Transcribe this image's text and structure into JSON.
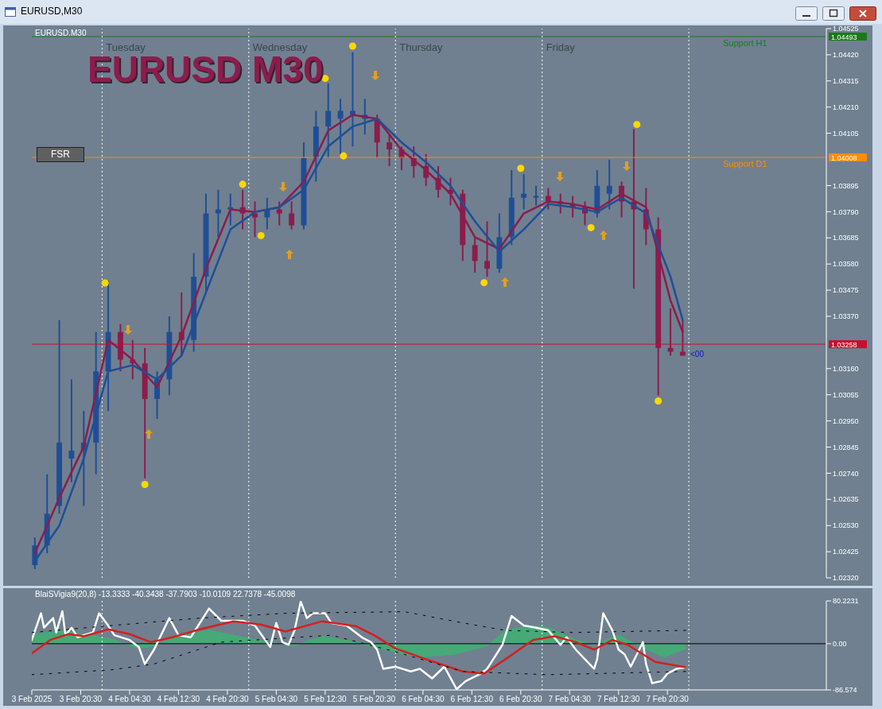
{
  "chart_data": [
    {
      "type": "candlestick",
      "title": "EURUSD M30",
      "x": [
        "2025-02-03T13:00",
        "2025-02-03T15:00",
        "2025-02-03T17:00",
        "2025-02-03T19:00",
        "2025-02-03T21:00",
        "2025-02-03T23:00",
        "2025-02-04T01:00",
        "2025-02-04T03:00",
        "2025-02-04T05:00",
        "2025-02-04T07:00",
        "2025-02-04T09:00",
        "2025-02-04T11:00",
        "2025-02-04T13:00",
        "2025-02-04T15:00",
        "2025-02-04T17:00",
        "2025-02-04T19:00",
        "2025-02-04T21:00",
        "2025-02-04T23:00",
        "2025-02-05T01:00",
        "2025-02-05T03:00",
        "2025-02-05T05:00",
        "2025-02-05T07:00",
        "2025-02-05T09:00",
        "2025-02-05T11:00",
        "2025-02-05T13:00",
        "2025-02-05T15:00",
        "2025-02-05T17:00",
        "2025-02-05T19:00",
        "2025-02-05T21:00",
        "2025-02-05T23:00",
        "2025-02-06T01:00",
        "2025-02-06T03:00",
        "2025-02-06T05:00",
        "2025-02-06T07:00",
        "2025-02-06T09:00",
        "2025-02-06T11:00",
        "2025-02-06T13:00",
        "2025-02-06T15:00",
        "2025-02-06T17:00",
        "2025-02-06T19:00",
        "2025-02-06T21:00",
        "2025-02-06T23:00",
        "2025-02-07T01:00",
        "2025-02-07T03:00",
        "2025-02-07T05:00",
        "2025-02-07T07:00",
        "2025-02-07T09:00",
        "2025-02-07T11:00",
        "2025-02-07T13:00",
        "2025-02-07T15:00",
        "2025-02-07T17:00",
        "2025-02-07T19:00",
        "2025-02-07T21:00",
        "2025-02-07T23:00"
      ],
      "ohlc": [
        [
          1.02371,
          1.02482,
          1.02355,
          1.0245
        ],
        [
          1.0245,
          1.02736,
          1.02419,
          1.02577
        ],
        [
          1.02609,
          1.03355,
          1.02577,
          1.02863
        ],
        [
          1.02799,
          1.03117,
          1.02704,
          1.02831
        ],
        [
          1.02831,
          1.0299,
          1.02609,
          1.02863
        ],
        [
          1.02863,
          1.03307,
          1.02736,
          1.03149
        ],
        [
          1.03149,
          1.03513,
          1.0299,
          1.03307
        ],
        [
          1.03307,
          1.03339,
          1.03149,
          1.03196
        ],
        [
          1.03196,
          1.03275,
          1.03117,
          1.03181
        ],
        [
          1.03181,
          1.03243,
          1.0272,
          1.03038
        ],
        [
          1.03038,
          1.03149,
          1.02958,
          1.03117
        ],
        [
          1.03117,
          1.0337,
          1.03053,
          1.03307
        ],
        [
          1.03307,
          1.03466,
          1.03212,
          1.03275
        ],
        [
          1.03275,
          1.03624,
          1.03228,
          1.03529
        ],
        [
          1.03529,
          1.03862,
          1.03466,
          1.03783
        ],
        [
          1.03783,
          1.03878,
          1.03688,
          1.03799
        ],
        [
          1.03799,
          1.03862,
          1.03735,
          1.03808
        ],
        [
          1.03808,
          1.03878,
          1.03719,
          1.03783
        ],
        [
          1.03783,
          1.03831,
          1.03688,
          1.03767
        ],
        [
          1.03767,
          1.03846,
          1.03719,
          1.03799
        ],
        [
          1.03799,
          1.03831,
          1.03735,
          1.03783
        ],
        [
          1.03783,
          1.03831,
          1.03719,
          1.03735
        ],
        [
          1.03735,
          1.04068,
          1.03719,
          1.04005
        ],
        [
          1.04005,
          1.04195,
          1.03911,
          1.04132
        ],
        [
          1.04132,
          1.04306,
          1.04005,
          1.04195
        ],
        [
          1.04163,
          1.04243,
          1.04021,
          1.04195
        ],
        [
          1.04179,
          1.0443,
          1.04052,
          1.04195
        ],
        [
          1.04163,
          1.04243,
          1.041,
          1.04179
        ],
        [
          1.04163,
          1.04179,
          1.04005,
          1.04068
        ],
        [
          1.04068,
          1.041,
          1.03973,
          1.0404
        ],
        [
          1.0404,
          1.04052,
          1.03957,
          1.04005
        ],
        [
          1.04005,
          1.04052,
          1.03926,
          1.03973
        ],
        [
          1.03973,
          1.04021,
          1.03894,
          1.03926
        ],
        [
          1.03926,
          1.03973,
          1.03846,
          1.03878
        ],
        [
          1.03878,
          1.03926,
          1.03815,
          1.03862
        ],
        [
          1.03862,
          1.03878,
          1.03592,
          1.03656
        ],
        [
          1.03656,
          1.03688,
          1.03545,
          1.03592
        ],
        [
          1.03592,
          1.03751,
          1.03529,
          1.03561
        ],
        [
          1.03561,
          1.03783,
          1.03545,
          1.03688
        ],
        [
          1.03688,
          1.03957,
          1.03656,
          1.03846
        ],
        [
          1.03846,
          1.03941,
          1.03799,
          1.03862
        ],
        [
          1.03846,
          1.03894,
          1.03815,
          1.03853
        ],
        [
          1.03853,
          1.03885,
          1.03799,
          1.03831
        ],
        [
          1.03831,
          1.03862,
          1.03783,
          1.03821
        ],
        [
          1.03821,
          1.03853,
          1.03767,
          1.03808
        ],
        [
          1.03808,
          1.03831,
          1.03735,
          1.03783
        ],
        [
          1.03783,
          1.03957,
          1.03767,
          1.03894
        ],
        [
          1.03862,
          1.03999,
          1.03799,
          1.03894
        ],
        [
          1.03894,
          1.03911,
          1.03767,
          1.03831
        ],
        [
          1.03831,
          1.04122,
          1.03481,
          1.03799
        ],
        [
          1.03799,
          1.03885,
          1.03656,
          1.03719
        ],
        [
          1.03719,
          1.03767,
          1.03053,
          1.03243
        ],
        [
          1.03243,
          1.03402,
          1.03212,
          1.03228
        ],
        [
          1.03228,
          1.03355,
          1.03212,
          1.03212
        ]
      ],
      "colors": [
        "#1f4e96",
        "#1f4e96",
        "#1f4e96",
        "#1f4e96",
        "#1f4e96",
        "#1f4e96",
        "#1f4e96",
        "#8c1c4c",
        "#8c1c4c",
        "#8c1c4c",
        "#1f4e96",
        "#1f4e96",
        "#8c1c4c",
        "#1f4e96",
        "#1f4e96",
        "#1f4e96",
        "#1f4e96",
        "#8c1c4c",
        "#8c1c4c",
        "#1f4e96",
        "#8c1c4c",
        "#8c1c4c",
        "#1f4e96",
        "#1f4e96",
        "#1f4e96",
        "#1f4e96",
        "#1f4e96",
        "#1f4e96",
        "#8c1c4c",
        "#8c1c4c",
        "#8c1c4c",
        "#8c1c4c",
        "#8c1c4c",
        "#8c1c4c",
        "#8c1c4c",
        "#8c1c4c",
        "#8c1c4c",
        "#8c1c4c",
        "#1f4e96",
        "#1f4e96",
        "#1f4e96",
        "#1f4e96",
        "#8c1c4c",
        "#8c1c4c",
        "#8c1c4c",
        "#8c1c4c",
        "#1f4e96",
        "#1f4e96",
        "#8c1c4c",
        "#8c1c4c",
        "#8c1c4c",
        "#8c1c4c",
        "#8c1c4c",
        "#8c1c4c"
      ],
      "series": [
        {
          "type": "line",
          "color": "#8c1c4c",
          "x": [
            "2025-02-03T13:00",
            "2025-02-03T17:00",
            "2025-02-03T21:00",
            "2025-02-04T01:00",
            "2025-02-04T05:00",
            "2025-02-04T09:00",
            "2025-02-04T13:00",
            "2025-02-04T17:00",
            "2025-02-04T21:00",
            "2025-02-05T01:00",
            "2025-02-05T05:00",
            "2025-02-05T09:00",
            "2025-02-05T13:00",
            "2025-02-05T17:00",
            "2025-02-05T21:00",
            "2025-02-06T01:00",
            "2025-02-06T05:00",
            "2025-02-06T09:00",
            "2025-02-06T13:00",
            "2025-02-06T17:00",
            "2025-02-06T21:00",
            "2025-02-07T01:00",
            "2025-02-07T05:00",
            "2025-02-07T09:00",
            "2025-02-07T13:00",
            "2025-02-07T17:00",
            "2025-02-07T21:00",
            "2025-02-07T23:00"
          ],
          "values": [
            1.02419,
            1.02641,
            1.02847,
            1.03275,
            1.03196,
            1.03085,
            1.03291,
            1.03561,
            1.03799,
            1.03789,
            1.03808,
            1.0391,
            1.04116,
            1.04179,
            1.04163,
            1.04037,
            1.03957,
            1.03862,
            1.03688,
            1.0364,
            1.03783,
            1.03831,
            1.03821,
            1.03799,
            1.03862,
            1.03808,
            1.03434,
            1.03307
          ]
        },
        {
          "type": "line",
          "color": "#1f4e96",
          "x": [
            "2025-02-03T13:00",
            "2025-02-03T17:00",
            "2025-02-03T21:00",
            "2025-02-04T01:00",
            "2025-02-04T05:00",
            "2025-02-04T09:00",
            "2025-02-04T13:00",
            "2025-02-04T17:00",
            "2025-02-04T21:00",
            "2025-02-05T01:00",
            "2025-02-05T05:00",
            "2025-02-05T09:00",
            "2025-02-05T13:00",
            "2025-02-05T17:00",
            "2025-02-05T21:00",
            "2025-02-06T01:00",
            "2025-02-06T05:00",
            "2025-02-06T09:00",
            "2025-02-06T13:00",
            "2025-02-06T17:00",
            "2025-02-06T21:00",
            "2025-02-07T01:00",
            "2025-02-07T05:00",
            "2025-02-07T09:00",
            "2025-02-07T13:00",
            "2025-02-07T17:00",
            "2025-02-07T21:00",
            "2025-02-07T23:00"
          ],
          "values": [
            1.02387,
            1.0253,
            1.02799,
            1.03149,
            1.03174,
            1.03117,
            1.03212,
            1.03466,
            1.03719,
            1.03789,
            1.03808,
            1.03878,
            1.04052,
            1.04132,
            1.04163,
            1.04068,
            1.03989,
            1.03894,
            1.03751,
            1.0363,
            1.03719,
            1.03821,
            1.03808,
            1.03789,
            1.03846,
            1.03783,
            1.03529,
            1.03355
          ]
        },
        {
          "type": "scatter",
          "color": "#ffd700",
          "x": [
            "2025-02-04T00:30",
            "2025-02-04T07:00",
            "2025-02-04T23:00",
            "2025-02-05T02:00",
            "2025-02-05T12:30",
            "2025-02-05T15:30",
            "2025-02-05T17:00",
            "2025-02-06T14:30",
            "2025-02-06T20:30",
            "2025-02-07T08:00",
            "2025-02-07T15:30",
            "2025-02-07T19:00"
          ],
          "values": [
            1.03504,
            1.02695,
            1.039,
            1.03694,
            1.04325,
            1.04014,
            1.04455,
            1.03505,
            1.03964,
            1.03726,
            1.0414,
            1.0303
          ]
        }
      ],
      "xlim": [
        "2025-02-03T12:30",
        "2025-02-08T22:30"
      ],
      "ylim": [
        1.0232,
        1.04525
      ],
      "yticks": [
        {
          "value": 1.04525,
          "label": "1.04525"
        },
        {
          "value": 1.0442,
          "label": "1.04420"
        },
        {
          "value": 1.04315,
          "label": "1.04315"
        },
        {
          "value": 1.0421,
          "label": "1.04210"
        },
        {
          "value": 1.04105,
          "label": "1.04105"
        },
        {
          "value": 1.03895,
          "label": "1.03895"
        },
        {
          "value": 1.0379,
          "label": "1.03790"
        },
        {
          "value": 1.03685,
          "label": "1.03685"
        },
        {
          "value": 1.0358,
          "label": "1.03580"
        },
        {
          "value": 1.03475,
          "label": "1.03475"
        },
        {
          "value": 1.0337,
          "label": "1.03370"
        },
        {
          "value": 1.0316,
          "label": "1.03160"
        },
        {
          "value": 1.03055,
          "label": "1.03055"
        },
        {
          "value": 1.0295,
          "label": "1.02950"
        },
        {
          "value": 1.02845,
          "label": "1.02845"
        },
        {
          "value": 1.0274,
          "label": "1.02740"
        },
        {
          "value": 1.02635,
          "label": "1.02635"
        },
        {
          "value": 1.0253,
          "label": "1.02530"
        },
        {
          "value": 1.02425,
          "label": "1.02425"
        },
        {
          "value": 1.0232,
          "label": "1.02320"
        }
      ],
      "tick_labels": "y",
      "ref_lines": [
        {
          "axis": "y",
          "value": 1.04493,
          "label": "Support H1",
          "color": "#1a7a1a"
        },
        {
          "axis": "y",
          "value": 1.04008,
          "label": "Support D1",
          "color": "#ff8c00"
        },
        {
          "axis": "y",
          "value": 1.03258,
          "label": null,
          "color": "#c8102e"
        },
        {
          "axis": "x",
          "value": "2025-02-04T00:00",
          "label": "Tuesday",
          "color": "#ffffff",
          "line_style": "dotted"
        },
        {
          "axis": "x",
          "value": "2025-02-05T00:00",
          "label": "Wednesday",
          "color": "#ffffff",
          "line_style": "dotted"
        },
        {
          "axis": "x",
          "value": "2025-02-06T00:00",
          "label": "Thursday",
          "color": "#ffffff",
          "line_style": "dotted"
        },
        {
          "axis": "x",
          "value": "2025-02-07T00:00",
          "label": "Friday",
          "color": "#ffffff",
          "line_style": "dotted"
        },
        {
          "axis": "x",
          "value": "2025-02-08T00:00",
          "label": null,
          "color": "#ffffff",
          "line_style": "dotted"
        }
      ],
      "annotations": [
        "EURUSD,M30",
        "EURUSD.M30",
        "FSR",
        "<00",
        "1.04493",
        "1.04008",
        "1.03258"
      ]
    },
    {
      "type": "line",
      "title": "BlaiSVigia9(20,8) -13.3333 -40.3438 -37.7903 -10.0109 22.7378 -45.0098",
      "series": [
        {
          "type": "area",
          "color": "#3cb371",
          "x": [
            "2025-02-03T12:30",
            "2025-02-03T17:00",
            "2025-02-03T22:00",
            "2025-02-04T02:00",
            "2025-02-04T06:00",
            "2025-02-04T08:30",
            "2025-02-04T12:00",
            "2025-02-04T17:30",
            "2025-02-04T23:00",
            "2025-02-05T03:30",
            "2025-02-05T07:30",
            "2025-02-05T12:00",
            "2025-02-05T17:30",
            "2025-02-05T20:30",
            "2025-02-06T03:30",
            "2025-02-06T09:30",
            "2025-02-06T15:00",
            "2025-02-06T18:00",
            "2025-02-06T22:30",
            "2025-02-07T01:00",
            "2025-02-07T05:30",
            "2025-02-07T08:30",
            "2025-02-07T12:30",
            "2025-02-07T15:30",
            "2025-02-07T20:00",
            "2025-02-07T23:30"
          ],
          "values": [
            16,
            25,
            16,
            7,
            -9,
            -4,
            12,
            25,
            12,
            3,
            -4,
            14,
            3,
            -6,
            -25,
            -20,
            -4,
            25,
            34,
            30,
            7,
            -2,
            16,
            -2,
            -25,
            -9
          ]
        },
        {
          "type": "line",
          "color": "#ffffff",
          "x": [
            "2025-02-03T12:30",
            "2025-02-03T14:00",
            "2025-02-03T14:30",
            "2025-02-03T16:00",
            "2025-02-03T16:30",
            "2025-02-03T17:30",
            "2025-02-03T18:00",
            "2025-02-03T19:00",
            "2025-02-03T20:00",
            "2025-02-03T21:00",
            "2025-02-03T22:30",
            "2025-02-03T23:30",
            "2025-02-04T01:00",
            "2025-02-04T02:00",
            "2025-02-04T04:30",
            "2025-02-04T06:00",
            "2025-02-04T07:00",
            "2025-02-04T08:30",
            "2025-02-04T11:00",
            "2025-02-04T12:30",
            "2025-02-04T14:30",
            "2025-02-04T17:30",
            "2025-02-04T19:30",
            "2025-02-04T23:00",
            "2025-02-05T01:00",
            "2025-02-05T03:30",
            "2025-02-05T04:30",
            "2025-02-05T05:30",
            "2025-02-05T06:30",
            "2025-02-05T07:30",
            "2025-02-05T08:30",
            "2025-02-05T09:30",
            "2025-02-05T10:30",
            "2025-02-05T12:30",
            "2025-02-05T13:30",
            "2025-02-05T16:00",
            "2025-02-05T18:30",
            "2025-02-05T20:00",
            "2025-02-05T21:00",
            "2025-02-05T22:00",
            "2025-02-06T00:00",
            "2025-02-06T02:30",
            "2025-02-06T04:00",
            "2025-02-06T06:00",
            "2025-02-06T08:00",
            "2025-02-06T10:00",
            "2025-02-06T11:30",
            "2025-02-06T14:00",
            "2025-02-06T15:00",
            "2025-02-06T17:30",
            "2025-02-06T19:00",
            "2025-02-06T21:00",
            "2025-02-06T23:00",
            "2025-02-07T01:00",
            "2025-02-07T03:00",
            "2025-02-07T04:00",
            "2025-02-07T05:30",
            "2025-02-07T07:00",
            "2025-02-07T08:30",
            "2025-02-07T09:00",
            "2025-02-07T10:00",
            "2025-02-07T11:30",
            "2025-02-07T12:30",
            "2025-02-07T13:30",
            "2025-02-07T14:30",
            "2025-02-07T15:30",
            "2025-02-07T16:30",
            "2025-02-07T17:00",
            "2025-02-07T18:00",
            "2025-02-07T19:30",
            "2025-02-07T20:30",
            "2025-02-07T22:00",
            "2025-02-07T23:30"
          ],
          "values": [
            7,
            57,
            30,
            48,
            21,
            61,
            16,
            30,
            12,
            16,
            21,
            57,
            34,
            16,
            7,
            -6,
            -38,
            -11,
            48,
            16,
            12,
            66,
            43,
            43,
            34,
            -6,
            39,
            3,
            -2,
            25,
            79,
            48,
            57,
            57,
            39,
            34,
            12,
            3,
            -11,
            -47,
            -43,
            -52,
            -47,
            -65,
            -43,
            -85,
            -70,
            -56,
            -47,
            -2,
            52,
            34,
            30,
            25,
            -2,
            12,
            -11,
            -29,
            -47,
            -29,
            57,
            25,
            -11,
            -20,
            -43,
            -20,
            3,
            -38,
            -74,
            -70,
            -56,
            -47,
            -44
          ]
        },
        {
          "type": "line",
          "color": "#d42020",
          "x": [
            "2025-02-03T12:30",
            "2025-02-03T15:30",
            "2025-02-03T18:30",
            "2025-02-03T21:00",
            "2025-02-04T01:00",
            "2025-02-04T04:30",
            "2025-02-04T08:00",
            "2025-02-04T11:30",
            "2025-02-04T16:00",
            "2025-02-04T21:30",
            "2025-02-05T02:00",
            "2025-02-05T06:00",
            "2025-02-05T12:00",
            "2025-02-05T17:30",
            "2025-02-05T20:30",
            "2025-02-06T00:00",
            "2025-02-06T05:00",
            "2025-02-06T11:00",
            "2025-02-06T14:30",
            "2025-02-06T18:00",
            "2025-02-06T22:30",
            "2025-02-07T02:00",
            "2025-02-07T05:30",
            "2025-02-07T08:30",
            "2025-02-07T11:30",
            "2025-02-07T14:00",
            "2025-02-07T18:30",
            "2025-02-07T23:30"
          ],
          "values": [
            -18,
            7,
            18,
            14,
            27,
            18,
            3,
            12,
            27,
            42,
            36,
            23,
            42,
            33,
            16,
            -9,
            -29,
            -52,
            -56,
            -29,
            7,
            14,
            3,
            -11,
            7,
            -2,
            -34,
            -44
          ]
        },
        {
          "type": "line",
          "color": "#000000",
          "line_style": "dotted",
          "x": [
            "2025-02-03T12:30",
            "2025-02-04T01:30",
            "2025-02-04T16:00",
            "2025-02-05T06:00",
            "2025-02-06T01:30",
            "2025-02-06T11:00",
            "2025-02-06T18:00",
            "2025-02-07T05:00",
            "2025-02-07T23:30"
          ],
          "values": [
            21,
            34,
            48,
            57,
            60,
            39,
            25,
            21,
            25
          ]
        },
        {
          "type": "line",
          "color": "#000000",
          "line_style": "dotted",
          "x": [
            "2025-02-03T12:30",
            "2025-02-04T01:30",
            "2025-02-04T08:30",
            "2025-02-04T19:30",
            "2025-02-05T13:30",
            "2025-02-06T00:00",
            "2025-02-06T11:00",
            "2025-02-07T01:00",
            "2025-02-07T23:30"
          ],
          "values": [
            -58,
            -49,
            -38,
            3,
            16,
            -15,
            -52,
            -58,
            -52
          ]
        }
      ],
      "xlim": [
        "2025-02-03T12:30",
        "2025-02-08T22:30"
      ],
      "xticks": [
        {
          "value": "2025-02-03T12:30",
          "label": "3 Feb 2025"
        },
        {
          "value": "2025-02-03T20:30",
          "label": "3 Feb 20:30"
        },
        {
          "value": "2025-02-04T04:30",
          "label": "4 Feb 04:30"
        },
        {
          "value": "2025-02-04T12:30",
          "label": "4 Feb 12:30"
        },
        {
          "value": "2025-02-04T20:30",
          "label": "4 Feb 20:30"
        },
        {
          "value": "2025-02-05T04:30",
          "label": "5 Feb 04:30"
        },
        {
          "value": "2025-02-05T12:30",
          "label": "5 Feb 12:30"
        },
        {
          "value": "2025-02-05T20:30",
          "label": "5 Feb 20:30"
        },
        {
          "value": "2025-02-06T04:30",
          "label": "6 Feb 04:30"
        },
        {
          "value": "2025-02-06T12:30",
          "label": "6 Feb 12:30"
        },
        {
          "value": "2025-02-06T20:30",
          "label": "6 Feb 20:30"
        },
        {
          "value": "2025-02-07T04:30",
          "label": "7 Feb 04:30"
        },
        {
          "value": "2025-02-07T12:30",
          "label": "7 Feb 12:30"
        },
        {
          "value": "2025-02-07T20:30",
          "label": "7 Feb 20:30"
        }
      ],
      "ylim": [
        -86.574,
        80.2231
      ],
      "yticks": [
        80.2231,
        {
          "value": 0,
          "label": "0.00"
        },
        -86.574
      ],
      "ref_lines": [
        {
          "axis": "y",
          "value": 0,
          "label": null,
          "color": "#000000"
        },
        {
          "axis": "x",
          "value": "2025-02-04T00:00",
          "label": null,
          "color": "#ffffff",
          "line_style": "dotted"
        },
        {
          "axis": "x",
          "value": "2025-02-05T00:00",
          "label": null,
          "color": "#ffffff",
          "line_style": "dotted"
        },
        {
          "axis": "x",
          "value": "2025-02-06T00:00",
          "label": null,
          "color": "#ffffff",
          "line_style": "dotted"
        },
        {
          "axis": "x",
          "value": "2025-02-07T00:00",
          "label": null,
          "color": "#ffffff",
          "line_style": "dotted"
        },
        {
          "axis": "x",
          "value": "2025-02-08T00:00",
          "label": null,
          "color": "#ffffff",
          "line_style": "dotted"
        }
      ]
    }
  ]
}
